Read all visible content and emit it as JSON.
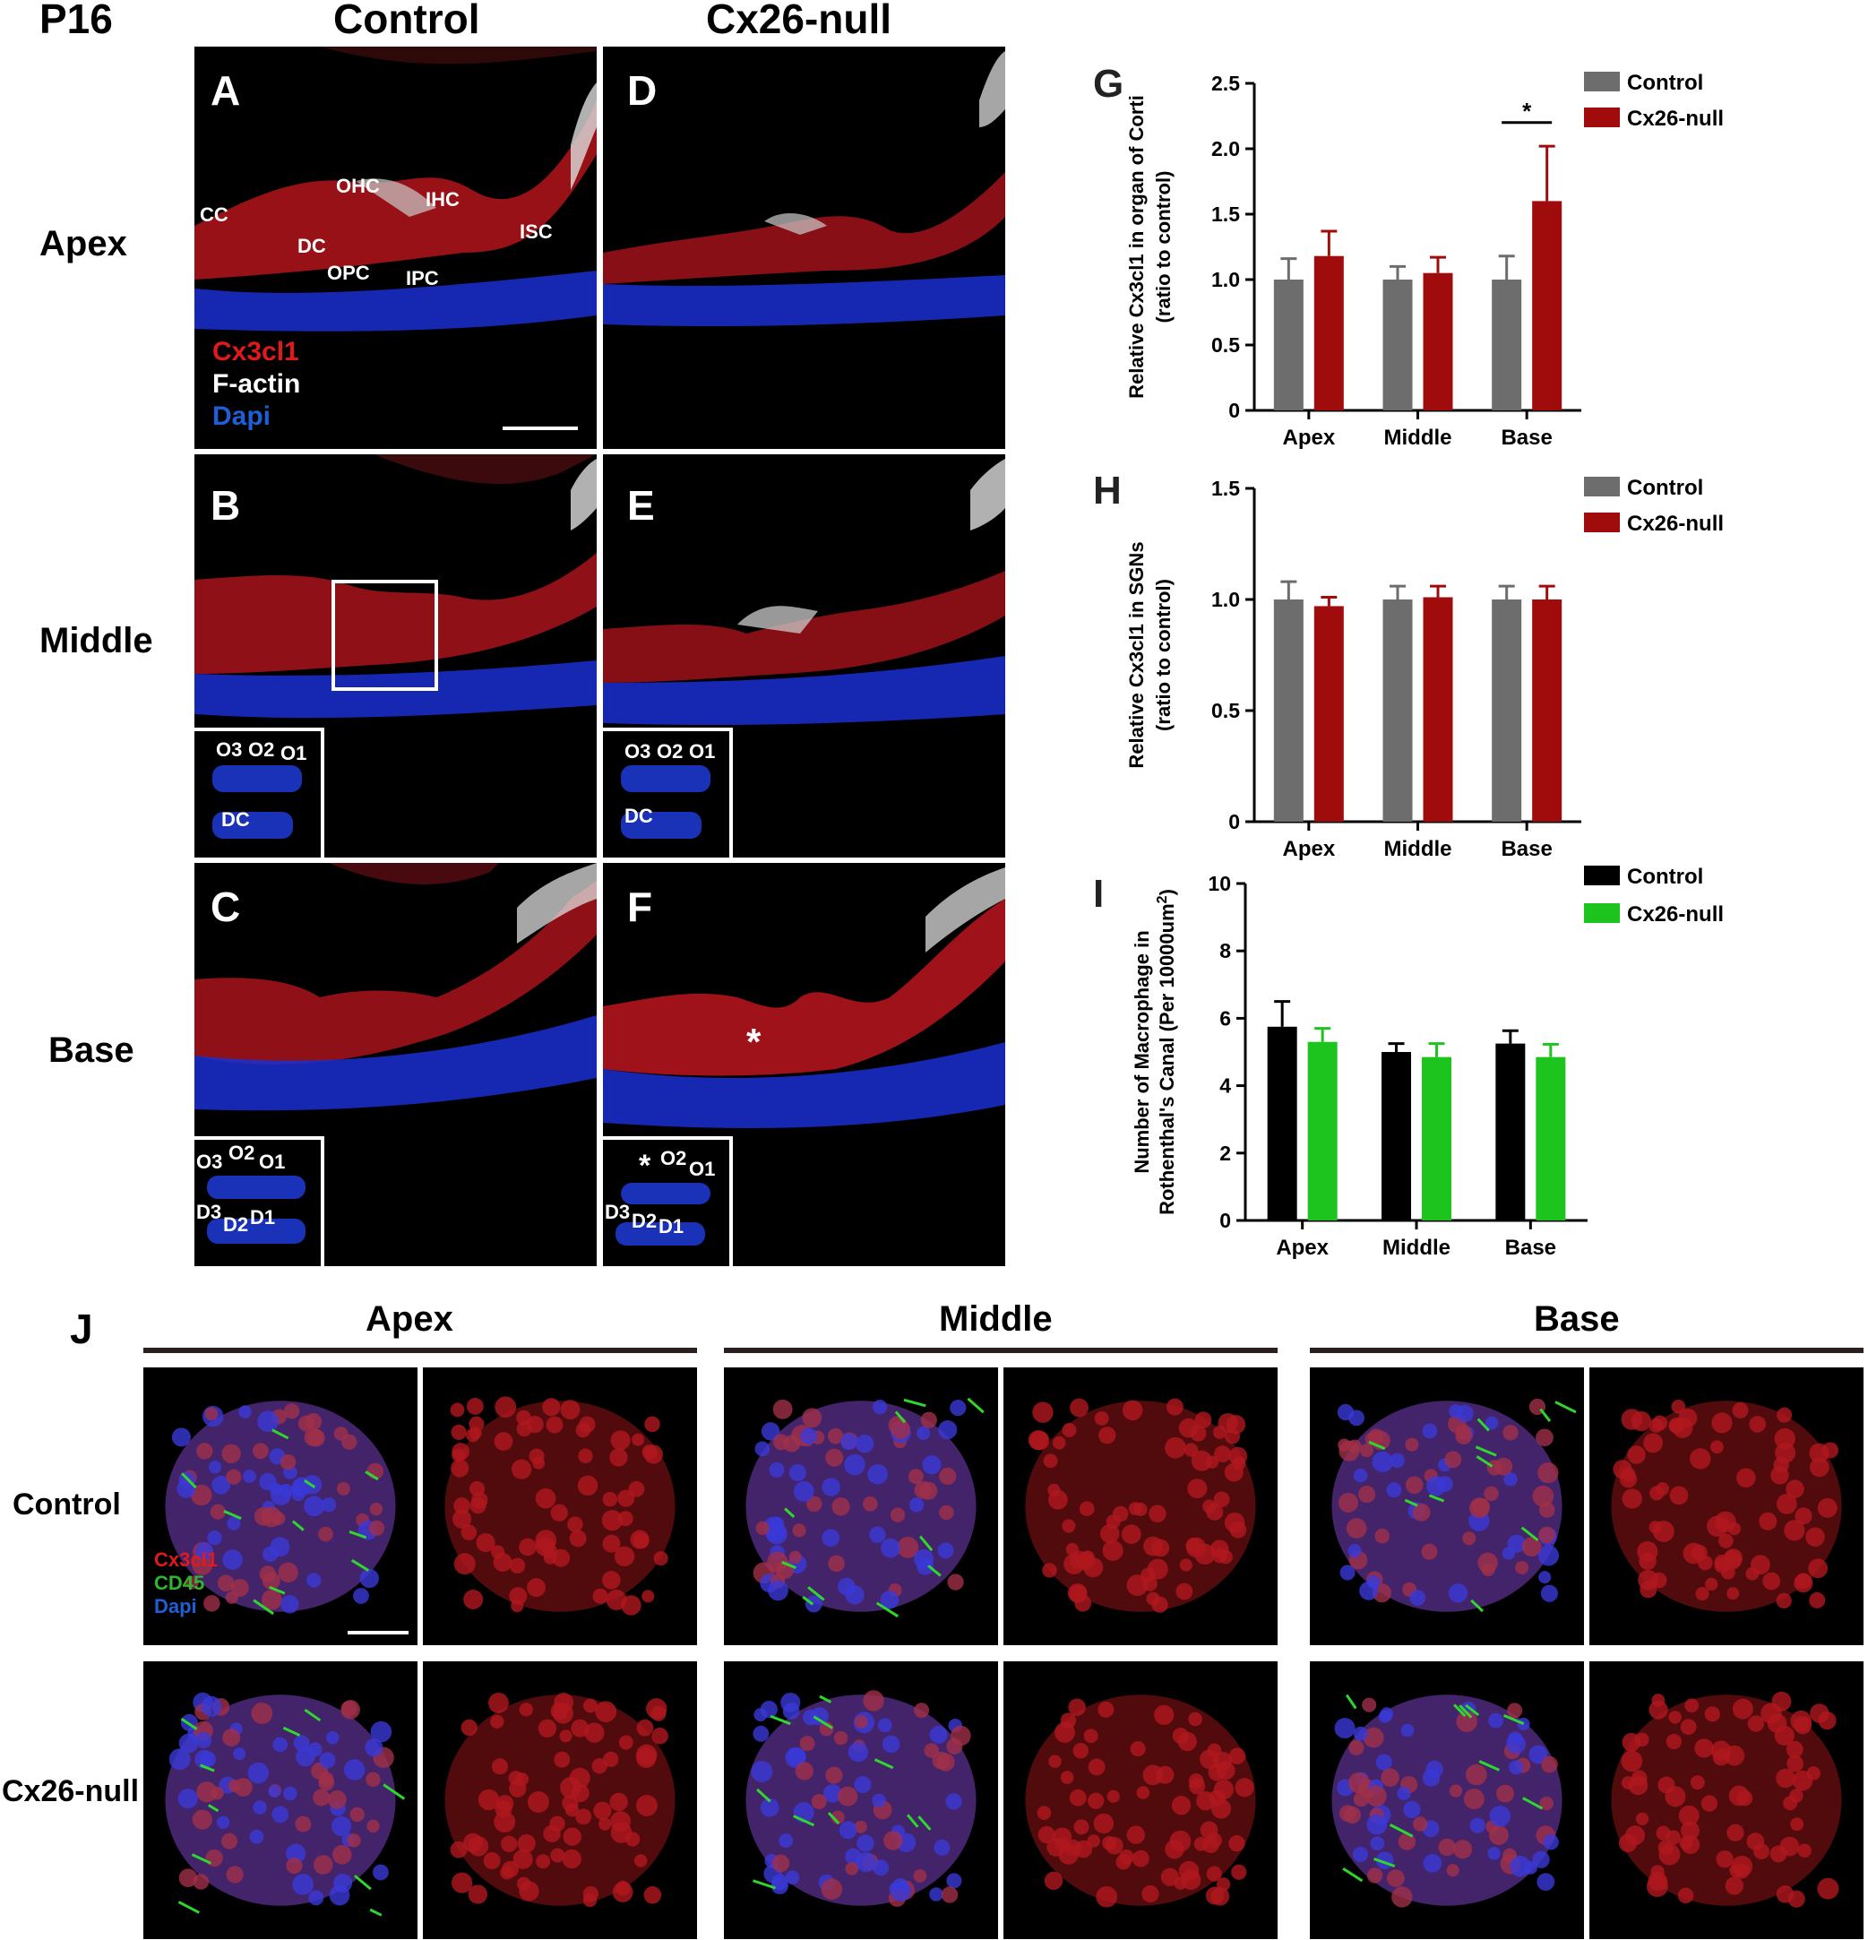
{
  "header": {
    "stage": "P16",
    "col_control": "Control",
    "col_null": "Cx26-null"
  },
  "rows": {
    "apex": "Apex",
    "middle": "Middle",
    "base": "Base"
  },
  "panels": {
    "A": "A",
    "B": "B",
    "C": "C",
    "D": "D",
    "E": "E",
    "F": "F",
    "G": "G",
    "H": "H",
    "I": "I",
    "J": "J"
  },
  "cell_labels": {
    "cc": "CC",
    "ohc": "OHC",
    "ihc": "IHC",
    "dc": "DC",
    "opc": "OPC",
    "ipc": "IPC",
    "isc": "ISC"
  },
  "inset_labels": {
    "o3": "O3",
    "o2": "O2",
    "o1": "O1",
    "dc": "DC",
    "d3": "D3",
    "d2": "D2",
    "d1": "D1",
    "star": "*"
  },
  "stain_legend_top": {
    "c1": "Cx3cl1",
    "c2": "F-actin",
    "c3": "Dapi"
  },
  "stain_legend_j": {
    "c1": "Cx3cl1",
    "c2": "CD45",
    "c3": "Dapi"
  },
  "j_section": {
    "apex": "Apex",
    "middle": "Middle",
    "base": "Base",
    "row_control": "Control",
    "row_null": "Cx26-null"
  },
  "colors": {
    "control_grey": "#6d6d6d",
    "null_red": "#a00c0c",
    "control_black": "#000000",
    "null_green": "#1ec41e",
    "stain_red": "#e01a1a",
    "stain_blue": "#1f5fd6",
    "stain_green": "#2fb52f"
  },
  "chart_data": [
    {
      "id": "G",
      "type": "bar",
      "categories": [
        "Apex",
        "Middle",
        "Base"
      ],
      "ylabel": "Relative Cx3cl1 in organ of Corti\n(ratio to control)",
      "ylim": [
        0,
        2.5
      ],
      "yticks": [
        "0",
        "0.5",
        "1.0",
        "1.5",
        "2.0",
        "2.5"
      ],
      "series": [
        {
          "name": "Control",
          "values": [
            1.0,
            1.0,
            1.0
          ],
          "err": [
            0.16,
            0.1,
            0.18
          ]
        },
        {
          "name": "Cx26-null",
          "values": [
            1.18,
            1.05,
            1.6
          ],
          "err": [
            0.19,
            0.12,
            0.42
          ]
        }
      ],
      "significance": {
        "category": "Base",
        "mark": "*"
      }
    },
    {
      "id": "H",
      "type": "bar",
      "categories": [
        "Apex",
        "Middle",
        "Base"
      ],
      "ylabel": "Relative Cx3cl1 in SGNs\n(ratio to control)",
      "ylim": [
        0,
        1.5
      ],
      "yticks": [
        "0",
        "0.5",
        "1.0",
        "1.5"
      ],
      "series": [
        {
          "name": "Control",
          "values": [
            1.0,
            1.0,
            1.0
          ],
          "err": [
            0.08,
            0.06,
            0.06
          ]
        },
        {
          "name": "Cx26-null",
          "values": [
            0.97,
            1.01,
            1.0
          ],
          "err": [
            0.04,
            0.05,
            0.06
          ]
        }
      ]
    },
    {
      "id": "I",
      "type": "bar",
      "categories": [
        "Apex",
        "Middle",
        "Base"
      ],
      "ylabel_line1": "Number of Macrophage in",
      "ylabel_line2": "Rothenthal's Canal (Per 10000um",
      "ylabel_sup": "2",
      "ylabel_end": ")",
      "ylim": [
        0,
        10
      ],
      "yticks": [
        "0",
        "2",
        "4",
        "6",
        "8",
        "10"
      ],
      "series": [
        {
          "name": "Control",
          "values": [
            5.75,
            5.0,
            5.25
          ],
          "err": [
            0.75,
            0.25,
            0.38
          ]
        },
        {
          "name": "Cx26-null",
          "values": [
            5.3,
            4.85,
            4.85
          ],
          "err": [
            0.4,
            0.4,
            0.38
          ]
        }
      ]
    }
  ]
}
